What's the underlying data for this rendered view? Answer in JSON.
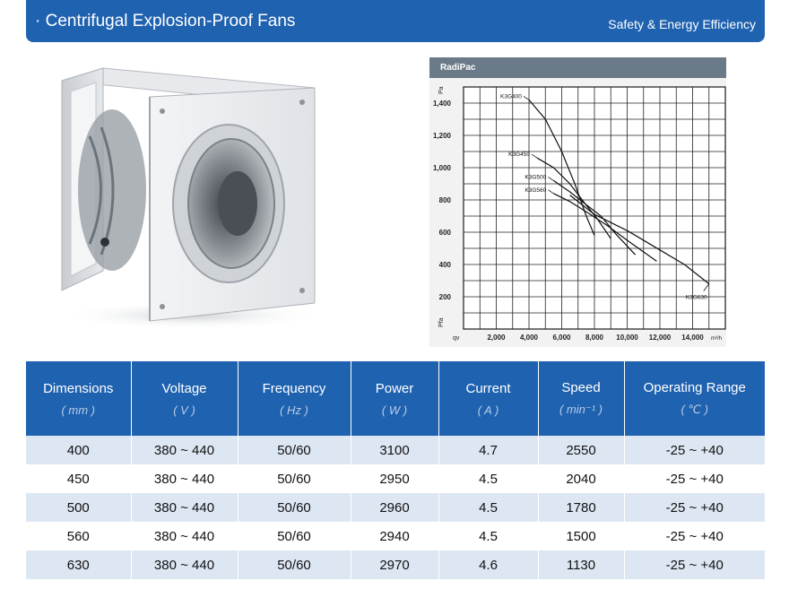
{
  "banner": {
    "title": "· Centrifugal Explosion-Proof Fans",
    "tagline": "Safety & Energy Efficiency"
  },
  "chart_data": {
    "type": "line",
    "header": "RadiPac",
    "y_axis_label": "Pa",
    "y_axis_label_bottom": "Pfa",
    "x_axis_label_left": "qv",
    "x_axis_unit": "m³/h",
    "y_ticks": [
      "1,400",
      "1,200",
      "1,000",
      "800",
      "600",
      "400",
      "200"
    ],
    "x_ticks": [
      "2,000",
      "4,000",
      "6,000",
      "8,000",
      "10,000",
      "12,000",
      "14,000"
    ],
    "xlim": [
      0,
      16000
    ],
    "ylim": [
      0,
      1500
    ],
    "grid": true,
    "series": [
      {
        "name": "K3G400",
        "x": [
          4000,
          5000,
          6000,
          6800,
          7500,
          8000
        ],
        "y": [
          1420,
          1300,
          1100,
          900,
          700,
          580
        ]
      },
      {
        "name": "K3G450",
        "x": [
          4500,
          5500,
          6500,
          7400,
          8200,
          9000
        ],
        "y": [
          1060,
          1000,
          900,
          780,
          680,
          560
        ]
      },
      {
        "name": "K3G500",
        "x": [
          5500,
          6500,
          7500,
          8400,
          9300,
          10500
        ],
        "y": [
          920,
          850,
          770,
          700,
          590,
          460
        ]
      },
      {
        "name": "K3G560",
        "x": [
          5500,
          6500,
          7600,
          8800,
          10000,
          11800
        ],
        "y": [
          840,
          790,
          720,
          640,
          550,
          420
        ]
      },
      {
        "name": "K3G630",
        "x": [
          6500,
          8000,
          10000,
          12000,
          13500,
          15000
        ],
        "y": [
          830,
          710,
          610,
          490,
          400,
          280
        ]
      }
    ]
  },
  "table": {
    "headers": [
      {
        "label": "Dimensions",
        "unit": "( mm )"
      },
      {
        "label": "Voltage",
        "unit": "( V )"
      },
      {
        "label": "Frequency",
        "unit": "( Hz )"
      },
      {
        "label": "Power",
        "unit": "( W )"
      },
      {
        "label": "Current",
        "unit": "( A )"
      },
      {
        "label": "Speed",
        "unit": "( min⁻¹ )"
      },
      {
        "label": "Operating Range",
        "unit": "( ℃ )"
      }
    ],
    "rows": [
      [
        "400",
        "380 ~ 440",
        "50/60",
        "3100",
        "4.7",
        "2550",
        "-25 ~ +40"
      ],
      [
        "450",
        "380 ~ 440",
        "50/60",
        "2950",
        "4.5",
        "2040",
        "-25 ~ +40"
      ],
      [
        "500",
        "380 ~ 440",
        "50/60",
        "2960",
        "4.5",
        "1780",
        "-25 ~ +40"
      ],
      [
        "560",
        "380 ~ 440",
        "50/60",
        "2940",
        "4.5",
        "1500",
        "-25 ~ +40"
      ],
      [
        "630",
        "380 ~ 440",
        "50/60",
        "2970",
        "4.6",
        "1130",
        "-25 ~ +40"
      ]
    ]
  }
}
